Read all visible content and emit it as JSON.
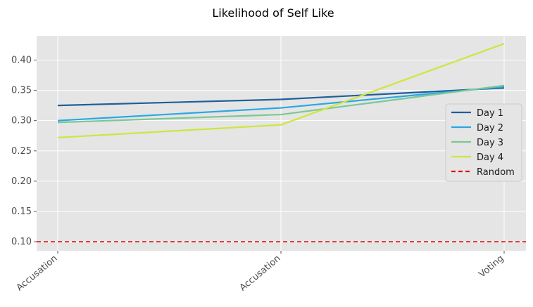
{
  "chart_data": {
    "type": "line",
    "title": "Likelihood of Self Like",
    "xlabel": "",
    "ylabel": "",
    "categories": [
      "Accusation",
      "Accusation",
      "Voting"
    ],
    "yticks": [
      "0.10",
      "0.15",
      "0.20",
      "0.25",
      "0.30",
      "0.35",
      "0.40"
    ],
    "ylim": [
      0.085,
      0.44
    ],
    "grid": true,
    "legend_position": "center-right",
    "series": [
      {
        "name": "Day 1",
        "color": "#1f5f99",
        "values": [
          0.325,
          0.335,
          0.354
        ]
      },
      {
        "name": "Day 2",
        "color": "#2aa7e4",
        "values": [
          0.3,
          0.321,
          0.356
        ]
      },
      {
        "name": "Day 3",
        "color": "#7cc794",
        "values": [
          0.297,
          0.31,
          0.358
        ]
      },
      {
        "name": "Day 4",
        "color": "#cde63e",
        "values": [
          0.272,
          0.293,
          0.427
        ]
      }
    ],
    "reference_line": {
      "name": "Random",
      "value": 0.1,
      "color": "#e01010",
      "style": "dashed"
    }
  }
}
